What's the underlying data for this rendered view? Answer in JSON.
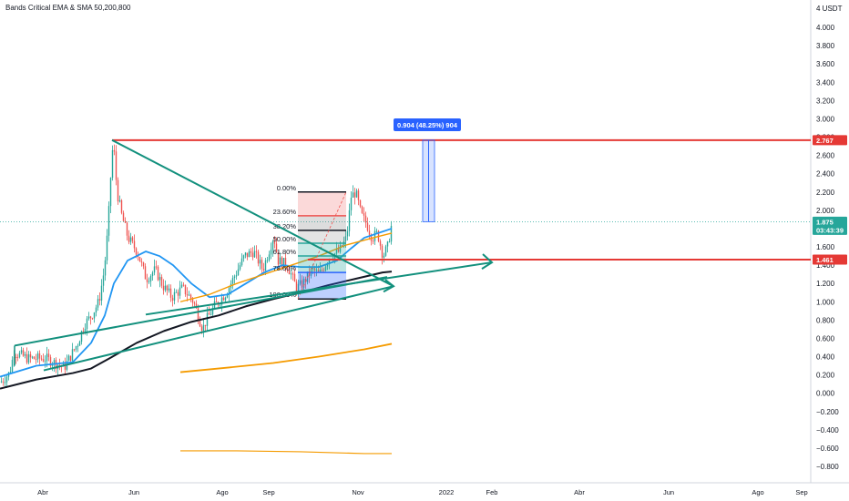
{
  "legend": "Bands Critical EMA & SMA 50,200,800",
  "currency_label": "4 USDT",
  "colors": {
    "up": "#26a69a",
    "down": "#ef5350",
    "ema50": "#2196f3",
    "sma200": "#131722",
    "sma800": "#f59b00",
    "hline": "#e53935",
    "trend": "#12907d",
    "measure": "#2962ff",
    "grid_dot": "#26a69a"
  },
  "chart_data": {
    "type": "candlestick",
    "y_ticks": [
      "4.000",
      "3.800",
      "3.600",
      "3.400",
      "3.200",
      "3.000",
      "2.800",
      "2.600",
      "2.400",
      "2.200",
      "2.000",
      "1.800",
      "1.600",
      "1.400",
      "1.200",
      "1.000",
      "0.800",
      "0.600",
      "0.400",
      "0.200",
      "0.000",
      "-0.200",
      "-0.400",
      "-0.600",
      "-0.800"
    ],
    "x_ticks": [
      "Abr",
      "Jun",
      "Ago",
      "Sep",
      "Nov",
      "2022",
      "Feb",
      "Abr",
      "Jun",
      "Ago",
      "Sep"
    ],
    "ylim": [
      -0.95,
      4.1
    ],
    "price_tags": [
      {
        "label": "2.767",
        "value": 2.767,
        "color": "#e53935"
      },
      {
        "label": "1.875",
        "value": 1.875,
        "color": "#26a69a",
        "sub": "03:43:39"
      },
      {
        "label": "1.461",
        "value": 1.461,
        "color": "#e53935"
      }
    ],
    "fib_levels": [
      {
        "label": "0.00%",
        "value": 2.2
      },
      {
        "label": "23.60%",
        "value": 1.94
      },
      {
        "label": "38.20%",
        "value": 1.78
      },
      {
        "label": "50.00%",
        "value": 1.64
      },
      {
        "label": "61.80%",
        "value": 1.5
      },
      {
        "label": "78.60%",
        "value": 1.32
      },
      {
        "label": "100.00%",
        "value": 1.03
      }
    ],
    "measure_label": "0.904 (48.25%) 904",
    "horizontal_lines": [
      2.767,
      1.461
    ]
  }
}
